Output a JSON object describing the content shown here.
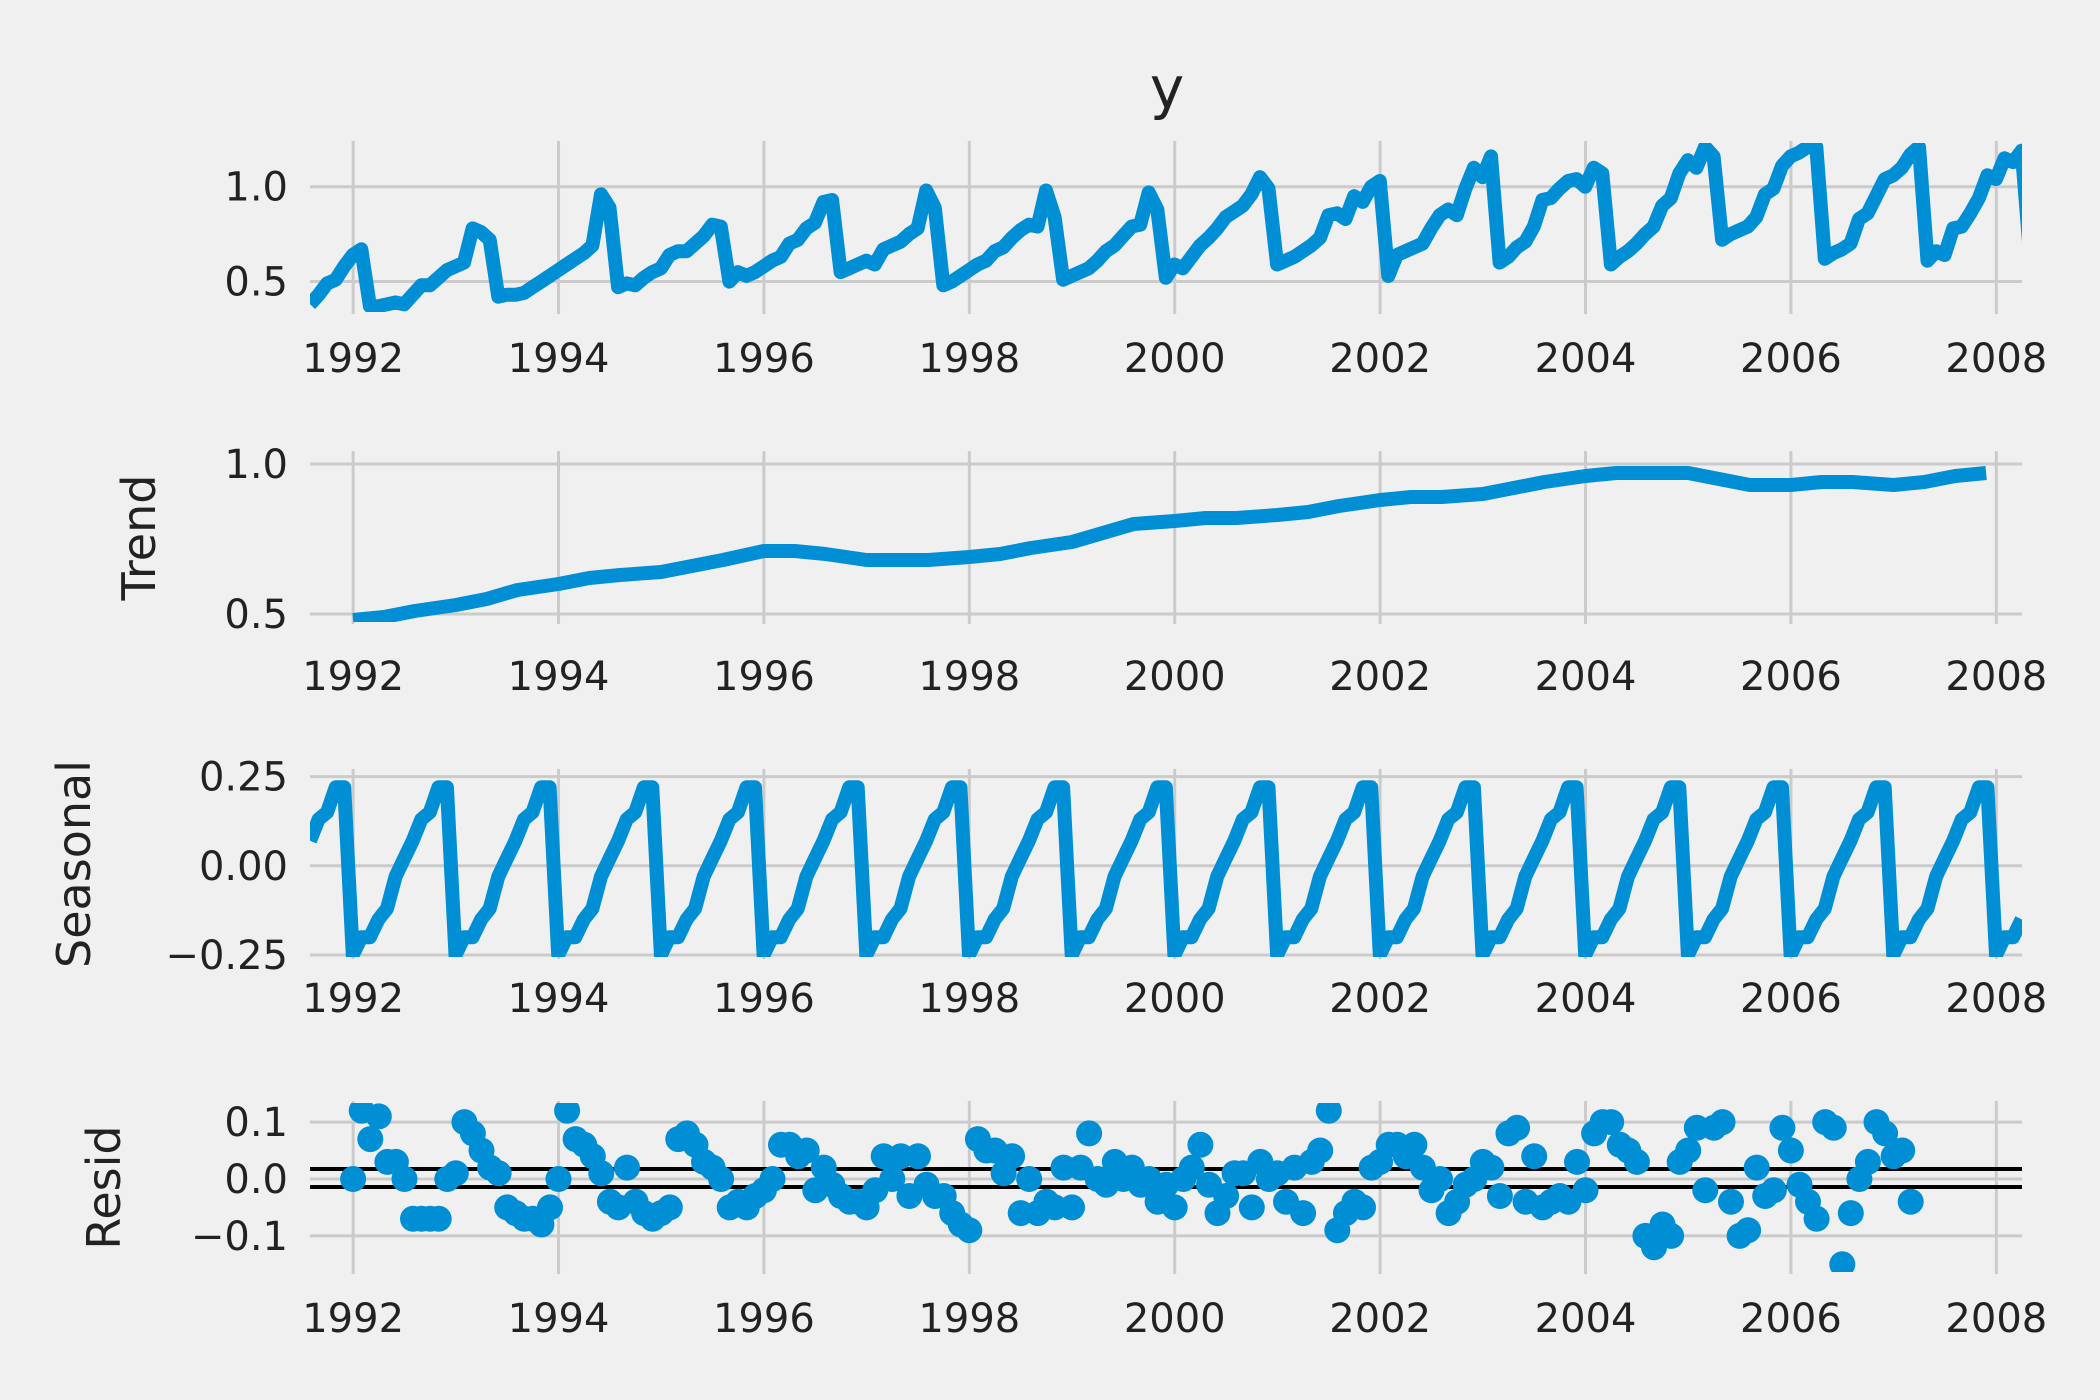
{
  "title": "y",
  "colors": {
    "series": "#008fd5",
    "grid": "#cbcbcb",
    "background": "#f0f0f0",
    "zero_line": "#000000"
  },
  "chart_data": [
    {
      "type": "line",
      "name": "observed",
      "title": "y",
      "ylabel": "",
      "xlim": [
        1991.58,
        2008.25
      ],
      "ylim": [
        0.35,
        1.22
      ],
      "x_ticks": [
        1992,
        1994,
        1996,
        1998,
        2000,
        2002,
        2004,
        2006,
        2008
      ],
      "x_tick_labels": [
        "1992",
        "1994",
        "1996",
        "1998",
        "2000",
        "2002",
        "2004",
        "2006",
        "2008"
      ],
      "y_ticks": [
        0.5,
        1.0
      ],
      "y_tick_labels": [
        "0.5",
        "1.0"
      ],
      "grid": true,
      "x_start": 1991.58,
      "x_step": 0.083333,
      "values": [
        0.38,
        0.43,
        0.49,
        0.51,
        0.58,
        0.64,
        0.67,
        0.37,
        0.37,
        0.38,
        0.39,
        0.38,
        0.43,
        0.48,
        0.48,
        0.52,
        0.56,
        0.58,
        0.6,
        0.78,
        0.76,
        0.72,
        0.42,
        0.43,
        0.43,
        0.44,
        0.47,
        0.5,
        0.53,
        0.56,
        0.59,
        0.62,
        0.65,
        0.69,
        0.96,
        0.89,
        0.47,
        0.49,
        0.48,
        0.52,
        0.55,
        0.57,
        0.64,
        0.66,
        0.66,
        0.7,
        0.74,
        0.8,
        0.79,
        0.5,
        0.55,
        0.53,
        0.55,
        0.58,
        0.61,
        0.63,
        0.7,
        0.72,
        0.78,
        0.81,
        0.92,
        0.93,
        0.55,
        0.57,
        0.59,
        0.61,
        0.59,
        0.67,
        0.69,
        0.71,
        0.75,
        0.78,
        0.98,
        0.89,
        0.48,
        0.5,
        0.53,
        0.56,
        0.59,
        0.61,
        0.66,
        0.68,
        0.73,
        0.77,
        0.8,
        0.79,
        0.98,
        0.84,
        0.51,
        0.53,
        0.55,
        0.57,
        0.61,
        0.66,
        0.69,
        0.74,
        0.79,
        0.8,
        0.97,
        0.88,
        0.52,
        0.59,
        0.57,
        0.63,
        0.69,
        0.73,
        0.78,
        0.84,
        0.87,
        0.9,
        0.96,
        1.05,
        0.99,
        0.59,
        0.61,
        0.63,
        0.66,
        0.69,
        0.73,
        0.85,
        0.86,
        0.83,
        0.95,
        0.92,
        1.0,
        1.03,
        0.53,
        0.64,
        0.66,
        0.68,
        0.7,
        0.78,
        0.85,
        0.88,
        0.85,
        0.99,
        1.1,
        1.05,
        1.16,
        0.6,
        0.63,
        0.68,
        0.71,
        0.79,
        0.93,
        0.94,
        0.99,
        1.03,
        1.04,
        1.0,
        1.1,
        1.07,
        0.59,
        0.63,
        0.66,
        0.7,
        0.75,
        0.79,
        0.9,
        0.94,
        1.07,
        1.14,
        1.1,
        1.21,
        1.16,
        0.72,
        0.75,
        0.77,
        0.79,
        0.84,
        0.96,
        0.99,
        1.11,
        1.16,
        1.18,
        1.21,
        1.21,
        0.62,
        0.65,
        0.67,
        0.7,
        0.83,
        0.86,
        0.95,
        1.04,
        1.06,
        1.1,
        1.17,
        1.21,
        0.61,
        0.66,
        0.64,
        0.78,
        0.79,
        0.86,
        0.94,
        1.06,
        1.04,
        1.15,
        1.13,
        1.19,
        0.63,
        0.65,
        0.56,
        0.72,
        0.79,
        0.88,
        0.95,
        1.05,
        1.09,
        1.11,
        1.12,
        1.16,
        1.17,
        1.18,
        0.82,
        0.65,
        0.84
      ]
    },
    {
      "type": "line",
      "name": "trend",
      "ylabel": "Trend",
      "xlim": [
        1991.58,
        2008.25
      ],
      "ylim": [
        0.48,
        1.03
      ],
      "x_ticks": [
        1992,
        1994,
        1996,
        1998,
        2000,
        2002,
        2004,
        2006,
        2008
      ],
      "x_tick_labels": [
        "1992",
        "1994",
        "1996",
        "1998",
        "2000",
        "2002",
        "2004",
        "2006",
        "2008"
      ],
      "y_ticks": [
        0.5,
        1.0
      ],
      "y_tick_labels": [
        "0.5",
        "1.0"
      ],
      "grid": true,
      "points": [
        [
          1992.0,
          0.48
        ],
        [
          1992.3,
          0.49
        ],
        [
          1992.6,
          0.51
        ],
        [
          1993.0,
          0.53
        ],
        [
          1993.3,
          0.55
        ],
        [
          1993.6,
          0.58
        ],
        [
          1994.0,
          0.6
        ],
        [
          1994.3,
          0.62
        ],
        [
          1994.6,
          0.63
        ],
        [
          1995.0,
          0.64
        ],
        [
          1995.3,
          0.66
        ],
        [
          1995.6,
          0.68
        ],
        [
          1996.0,
          0.71
        ],
        [
          1996.3,
          0.71
        ],
        [
          1996.6,
          0.7
        ],
        [
          1997.0,
          0.68
        ],
        [
          1997.3,
          0.68
        ],
        [
          1997.6,
          0.68
        ],
        [
          1998.0,
          0.69
        ],
        [
          1998.3,
          0.7
        ],
        [
          1998.6,
          0.72
        ],
        [
          1999.0,
          0.74
        ],
        [
          1999.3,
          0.77
        ],
        [
          1999.6,
          0.8
        ],
        [
          2000.0,
          0.81
        ],
        [
          2000.3,
          0.82
        ],
        [
          2000.6,
          0.82
        ],
        [
          2001.0,
          0.83
        ],
        [
          2001.3,
          0.84
        ],
        [
          2001.6,
          0.86
        ],
        [
          2002.0,
          0.88
        ],
        [
          2002.3,
          0.89
        ],
        [
          2002.6,
          0.89
        ],
        [
          2003.0,
          0.9
        ],
        [
          2003.3,
          0.92
        ],
        [
          2003.6,
          0.94
        ],
        [
          2004.0,
          0.96
        ],
        [
          2004.3,
          0.97
        ],
        [
          2004.6,
          0.97
        ],
        [
          2005.0,
          0.97
        ],
        [
          2005.3,
          0.95
        ],
        [
          2005.6,
          0.93
        ],
        [
          2006.0,
          0.93
        ],
        [
          2006.3,
          0.94
        ],
        [
          2006.6,
          0.94
        ],
        [
          2007.0,
          0.93
        ],
        [
          2007.3,
          0.94
        ],
        [
          2007.6,
          0.96
        ],
        [
          2007.9,
          0.97
        ]
      ]
    },
    {
      "type": "line",
      "name": "seasonal",
      "ylabel": "Seasonal",
      "xlim": [
        1991.58,
        2008.25
      ],
      "ylim": [
        -0.25,
        0.26
      ],
      "x_ticks": [
        1992,
        1994,
        1996,
        1998,
        2000,
        2002,
        2004,
        2006,
        2008
      ],
      "x_tick_labels": [
        "1992",
        "1994",
        "1996",
        "1998",
        "2000",
        "2002",
        "2004",
        "2006",
        "2008"
      ],
      "y_ticks": [
        -0.25,
        0.0,
        0.25
      ],
      "y_tick_labels": [
        "−0.25",
        "0.00",
        "0.25"
      ],
      "grid": true,
      "x_start": 1991.58,
      "x_step": 0.083333,
      "pattern_start_month": 8,
      "monthly_pattern": [
        -0.25,
        -0.2,
        -0.2,
        -0.15,
        -0.12,
        -0.03,
        0.02,
        0.07,
        0.13,
        0.15,
        0.22,
        0.22
      ]
    },
    {
      "type": "scatter",
      "name": "resid",
      "ylabel": "Resid",
      "xlim": [
        1991.58,
        2008.25
      ],
      "ylim": [
        -0.16,
        0.13
      ],
      "x_ticks": [
        1992,
        1994,
        1996,
        1998,
        2000,
        2002,
        2004,
        2006,
        2008
      ],
      "x_tick_labels": [
        "1992",
        "1994",
        "1996",
        "1998",
        "2000",
        "2002",
        "2004",
        "2006",
        "2008"
      ],
      "y_ticks": [
        -0.1,
        0.0,
        0.1
      ],
      "y_tick_labels": [
        "−0.1",
        "0.0",
        "0.1"
      ],
      "grid": true,
      "zero_line": 0.0,
      "x_start": 1992.0,
      "x_step": 0.083333,
      "values": [
        0.0,
        0.12,
        0.07,
        0.11,
        0.03,
        0.03,
        0.0,
        -0.07,
        -0.07,
        -0.07,
        -0.07,
        0.0,
        0.01,
        0.1,
        0.08,
        0.05,
        0.02,
        0.01,
        -0.05,
        -0.06,
        -0.07,
        -0.07,
        -0.08,
        -0.05,
        0.0,
        0.12,
        0.07,
        0.06,
        0.04,
        0.01,
        -0.04,
        -0.05,
        0.02,
        -0.04,
        -0.06,
        -0.07,
        -0.06,
        -0.05,
        0.07,
        0.08,
        0.06,
        0.03,
        0.02,
        0.0,
        -0.05,
        -0.04,
        -0.05,
        -0.03,
        -0.02,
        0.0,
        0.06,
        0.06,
        0.04,
        0.05,
        -0.02,
        0.02,
        -0.01,
        -0.03,
        -0.04,
        -0.04,
        -0.05,
        -0.02,
        0.04,
        0.0,
        0.04,
        -0.03,
        0.04,
        -0.01,
        -0.03,
        -0.03,
        -0.06,
        -0.08,
        -0.09,
        0.07,
        0.05,
        0.05,
        0.01,
        0.04,
        -0.06,
        0.0,
        -0.06,
        -0.04,
        -0.05,
        0.02,
        -0.05,
        0.02,
        0.08,
        0.0,
        -0.01,
        0.03,
        0.0,
        0.02,
        -0.01,
        0.0,
        -0.04,
        -0.01,
        -0.05,
        0.0,
        0.02,
        0.06,
        -0.01,
        -0.06,
        -0.03,
        0.01,
        0.01,
        -0.05,
        0.03,
        0.0,
        0.01,
        -0.04,
        0.02,
        -0.06,
        0.03,
        0.05,
        0.12,
        -0.09,
        -0.06,
        -0.04,
        -0.05,
        0.02,
        0.03,
        0.06,
        0.06,
        0.04,
        0.06,
        0.02,
        -0.02,
        0.0,
        -0.06,
        -0.04,
        -0.01,
        0.0,
        0.03,
        0.02,
        -0.03,
        0.08,
        0.09,
        -0.04,
        0.04,
        -0.05,
        -0.04,
        -0.03,
        -0.04,
        0.03,
        -0.02,
        0.08,
        0.1,
        0.1,
        0.06,
        0.05,
        0.03,
        -0.1,
        -0.12,
        -0.08,
        -0.1,
        0.03,
        0.05,
        0.09,
        -0.02,
        0.09,
        0.1,
        -0.04,
        -0.1,
        -0.09,
        0.02,
        -0.03,
        -0.02,
        0.09,
        0.05,
        -0.01,
        -0.04,
        -0.07,
        0.1,
        0.09,
        -0.15,
        -0.06,
        0.0,
        0.03,
        0.1,
        0.08,
        0.04,
        0.05,
        -0.04
      ]
    }
  ]
}
